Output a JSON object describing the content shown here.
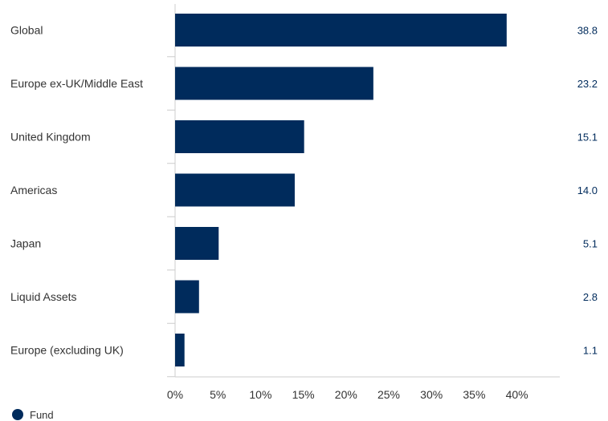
{
  "chart_data": {
    "type": "bar",
    "orientation": "horizontal",
    "categories": [
      "Global",
      "Europe ex-UK/Middle East",
      "United Kingdom",
      "Americas",
      "Japan",
      "Liquid Assets",
      "Europe (excluding UK)"
    ],
    "series": [
      {
        "name": "Fund",
        "values": [
          38.8,
          23.2,
          15.1,
          14.0,
          5.1,
          2.8,
          1.1
        ],
        "value_labels": [
          "38.8",
          "23.2",
          "15.1",
          "14.0",
          "5.1",
          "2.8",
          "1.1"
        ]
      }
    ],
    "xlim": [
      0,
      45
    ],
    "xticks": [
      0,
      5,
      10,
      15,
      20,
      25,
      30,
      35,
      40
    ],
    "xtick_labels": [
      "0%",
      "5%",
      "10%",
      "15%",
      "20%",
      "25%",
      "30%",
      "35%",
      "40%"
    ],
    "grid": false,
    "legend": {
      "position": "bottom-left",
      "entries": [
        "Fund"
      ]
    },
    "colors": {
      "bar": "#002b5c",
      "axis": "#cccccc",
      "value_text": "#002b5c"
    }
  }
}
